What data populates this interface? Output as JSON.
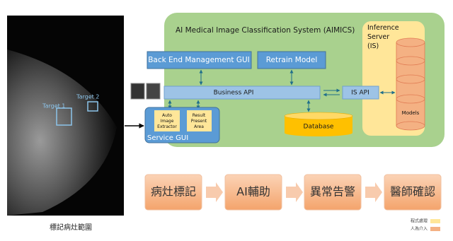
{
  "image": {
    "targets": [
      "Target 1",
      "Target 2"
    ],
    "caption": "標記病灶範圍"
  },
  "system": {
    "title": "AI Medical Image Classification System (AIMICS)",
    "backend": "Back End Management GUI",
    "retrain": "Retrain Model",
    "business_api": "Business API",
    "is_api": "IS API",
    "database": "Database",
    "service_gui": "Service GUI",
    "extractor": [
      "Auto",
      "Image",
      "Extractor"
    ],
    "result": [
      "Result",
      "Present",
      "Area"
    ],
    "inference": [
      "Inference",
      "Server",
      "(IS)"
    ],
    "models": "Models"
  },
  "flow": [
    "病灶標記",
    "AI輔助",
    "異常告警",
    "醫師確認"
  ],
  "legend": [
    "程式處理",
    "人為介入"
  ]
}
